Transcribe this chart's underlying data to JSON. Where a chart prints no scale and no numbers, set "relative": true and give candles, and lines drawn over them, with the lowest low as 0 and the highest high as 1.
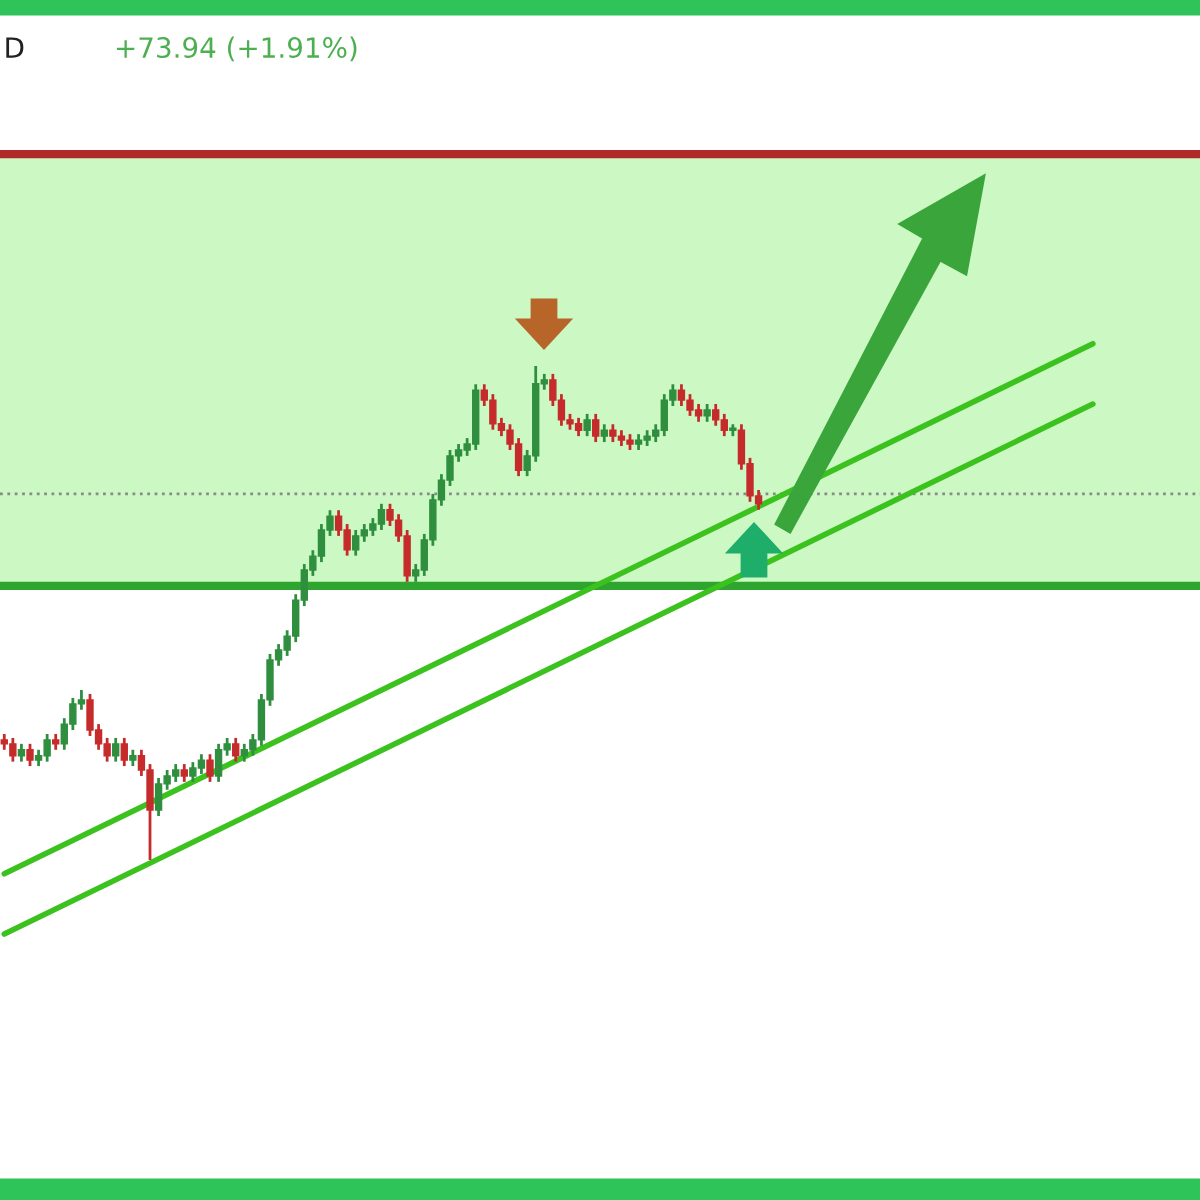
{
  "chart_data": {
    "type": "candlestick",
    "relative": true,
    "annotations": [
      "D",
      "+73.94 (+1.91%)"
    ],
    "categories": [
      null,
      null,
      null,
      null,
      null,
      null,
      null,
      null,
      null,
      null,
      null,
      null,
      null,
      null,
      null,
      null,
      null,
      null,
      null,
      null,
      null,
      null,
      null,
      null,
      null,
      null,
      null,
      null,
      null,
      null,
      null,
      null,
      null,
      null,
      null,
      null,
      null,
      null,
      null,
      null,
      null,
      null,
      null,
      null,
      null,
      null,
      null,
      null,
      null,
      null,
      null,
      null,
      null,
      null,
      null,
      null,
      null,
      null,
      null,
      null,
      null,
      null,
      null,
      null,
      null,
      null,
      null,
      null,
      null,
      null,
      null,
      null,
      null,
      null,
      null,
      null,
      null,
      null,
      null,
      null,
      null,
      null,
      null,
      null,
      null,
      null,
      null,
      null,
      null,
      null,
      null,
      null,
      null,
      null,
      null,
      null,
      null,
      null,
      null,
      null,
      null,
      null,
      null,
      null,
      null,
      null,
      null,
      null,
      null,
      null,
      null,
      null,
      null,
      null,
      null,
      null,
      null,
      null,
      null,
      null,
      null,
      null,
      null,
      null,
      null,
      null,
      null,
      null,
      null,
      null,
      null,
      null,
      null,
      null,
      null,
      null,
      null,
      null,
      null,
      null
    ],
    "ohlc": [
      [
        0.243,
        0.255,
        0.223,
        0.235
      ],
      [
        0.235,
        0.247,
        0.199,
        0.211
      ],
      [
        0.211,
        0.235,
        0.199,
        0.223
      ],
      [
        0.223,
        0.235,
        0.19,
        0.202
      ],
      [
        0.202,
        0.223,
        0.19,
        0.211
      ],
      [
        0.211,
        0.255,
        0.199,
        0.243
      ],
      [
        0.243,
        0.255,
        0.223,
        0.235
      ],
      [
        0.235,
        0.287,
        0.223,
        0.275
      ],
      [
        0.275,
        0.328,
        0.263,
        0.316
      ],
      [
        0.316,
        0.344,
        0.304,
        0.324
      ],
      [
        0.324,
        0.336,
        0.251,
        0.263
      ],
      [
        0.263,
        0.275,
        0.223,
        0.235
      ],
      [
        0.235,
        0.247,
        0.199,
        0.211
      ],
      [
        0.211,
        0.247,
        0.199,
        0.235
      ],
      [
        0.235,
        0.247,
        0.19,
        0.202
      ],
      [
        0.202,
        0.223,
        0.19,
        0.211
      ],
      [
        0.211,
        0.223,
        0.17,
        0.182
      ],
      [
        0.182,
        0.194,
        0,
        0.101
      ],
      [
        0.101,
        0.166,
        0.089,
        0.154
      ],
      [
        0.154,
        0.182,
        0.142,
        0.17
      ],
      [
        0.17,
        0.194,
        0.158,
        0.182
      ],
      [
        0.182,
        0.194,
        0.158,
        0.17
      ],
      [
        0.17,
        0.198,
        0.158,
        0.186
      ],
      [
        0.186,
        0.214,
        0.174,
        0.202
      ],
      [
        0.202,
        0.214,
        0.158,
        0.17
      ],
      [
        0.17,
        0.235,
        0.158,
        0.223
      ],
      [
        0.223,
        0.247,
        0.211,
        0.235
      ],
      [
        0.235,
        0.247,
        0.199,
        0.211
      ],
      [
        0.211,
        0.235,
        0.199,
        0.223
      ],
      [
        0.223,
        0.255,
        0.211,
        0.243
      ],
      [
        0.243,
        0.336,
        0.231,
        0.324
      ],
      [
        0.324,
        0.417,
        0.312,
        0.405
      ],
      [
        0.405,
        0.437,
        0.393,
        0.425
      ],
      [
        0.425,
        0.465,
        0.413,
        0.453
      ],
      [
        0.453,
        0.538,
        0.441,
        0.526
      ],
      [
        0.526,
        0.599,
        0.514,
        0.587
      ],
      [
        0.587,
        0.627,
        0.575,
        0.615
      ],
      [
        0.615,
        0.68,
        0.603,
        0.668
      ],
      [
        0.668,
        0.708,
        0.656,
        0.696
      ],
      [
        0.696,
        0.708,
        0.656,
        0.668
      ],
      [
        0.668,
        0.68,
        0.616,
        0.628
      ],
      [
        0.628,
        0.668,
        0.616,
        0.656
      ],
      [
        0.656,
        0.68,
        0.644,
        0.668
      ],
      [
        0.668,
        0.692,
        0.656,
        0.68
      ],
      [
        0.68,
        0.721,
        0.668,
        0.709
      ],
      [
        0.709,
        0.721,
        0.676,
        0.688
      ],
      [
        0.688,
        0.7,
        0.644,
        0.656
      ],
      [
        0.656,
        0.668,
        0.563,
        0.575
      ],
      [
        0.575,
        0.599,
        0.563,
        0.587
      ],
      [
        0.587,
        0.66,
        0.575,
        0.648
      ],
      [
        0.648,
        0.741,
        0.636,
        0.729
      ],
      [
        0.729,
        0.781,
        0.717,
        0.769
      ],
      [
        0.769,
        0.83,
        0.757,
        0.818
      ],
      [
        0.818,
        0.842,
        0.806,
        0.83
      ],
      [
        0.83,
        0.854,
        0.818,
        0.842
      ],
      [
        0.842,
        0.963,
        0.83,
        0.951
      ],
      [
        0.951,
        0.963,
        0.919,
        0.931
      ],
      [
        0.931,
        0.943,
        0.871,
        0.883
      ],
      [
        0.883,
        0.895,
        0.858,
        0.87
      ],
      [
        0.87,
        0.882,
        0.83,
        0.842
      ],
      [
        0.842,
        0.854,
        0.777,
        0.789
      ],
      [
        0.789,
        0.83,
        0.777,
        0.818
      ],
      [
        0.818,
        1,
        0.806,
        0.964
      ],
      [
        0.964,
        0.984,
        0.952,
        0.972
      ],
      [
        0.972,
        0.984,
        0.919,
        0.931
      ],
      [
        0.931,
        0.943,
        0.879,
        0.891
      ],
      [
        0.891,
        0.903,
        0.871,
        0.883
      ],
      [
        0.883,
        0.895,
        0.858,
        0.87
      ],
      [
        0.87,
        0.903,
        0.858,
        0.891
      ],
      [
        0.891,
        0.903,
        0.846,
        0.858
      ],
      [
        0.858,
        0.882,
        0.846,
        0.87
      ],
      [
        0.87,
        0.882,
        0.846,
        0.858
      ],
      [
        0.858,
        0.87,
        0.838,
        0.85
      ],
      [
        0.85,
        0.862,
        0.83,
        0.842
      ],
      [
        0.842,
        0.862,
        0.83,
        0.85
      ],
      [
        0.85,
        0.87,
        0.838,
        0.858
      ],
      [
        0.858,
        0.882,
        0.846,
        0.87
      ],
      [
        0.87,
        0.943,
        0.858,
        0.931
      ],
      [
        0.931,
        0.963,
        0.919,
        0.951
      ],
      [
        0.951,
        0.963,
        0.919,
        0.931
      ],
      [
        0.931,
        0.943,
        0.899,
        0.911
      ],
      [
        0.911,
        0.923,
        0.887,
        0.899
      ],
      [
        0.899,
        0.923,
        0.887,
        0.911
      ],
      [
        0.911,
        0.923,
        0.879,
        0.891
      ],
      [
        0.891,
        0.903,
        0.858,
        0.87
      ],
      [
        0.87,
        0.882,
        0.858,
        0.87
      ],
      [
        0.87,
        0.882,
        0.79,
        0.802
      ],
      [
        0.802,
        0.814,
        0.725,
        0.737
      ],
      [
        0.737,
        0.749,
        0.709,
        0.721
      ],
      null,
      null,
      null,
      null,
      null,
      null,
      null,
      null,
      null,
      null,
      null,
      null,
      null,
      null,
      null,
      null,
      null,
      null,
      null,
      null,
      null,
      null,
      null,
      null,
      null,
      null,
      null,
      null,
      null,
      null,
      null,
      null,
      null,
      null,
      null,
      null,
      null,
      null,
      null,
      null,
      null,
      null,
      null,
      null,
      null,
      null,
      null,
      null,
      null,
      null,
      null
    ],
    "series": [
      {
        "type": "line",
        "color": "#3cc21e",
        "values": [
          -0.028,
          null,
          null,
          null,
          null,
          null,
          null,
          null,
          null,
          null,
          null,
          null,
          null,
          null,
          null,
          null,
          null,
          null,
          null,
          null,
          null,
          null,
          null,
          null,
          null,
          null,
          null,
          null,
          null,
          null,
          null,
          null,
          null,
          null,
          null,
          null,
          null,
          null,
          null,
          null,
          null,
          null,
          null,
          null,
          null,
          null,
          null,
          null,
          null,
          null,
          null,
          null,
          null,
          null,
          null,
          null,
          null,
          null,
          null,
          null,
          null,
          null,
          null,
          null,
          null,
          null,
          null,
          null,
          null,
          null,
          null,
          null,
          null,
          null,
          null,
          null,
          null,
          null,
          null,
          null,
          null,
          null,
          null,
          null,
          null,
          null,
          null,
          null,
          null,
          null,
          null,
          null,
          null,
          null,
          null,
          null,
          null,
          null,
          null,
          null,
          null,
          null,
          null,
          null,
          null,
          null,
          null,
          null,
          null,
          null,
          null,
          null,
          null,
          null,
          null,
          null,
          null,
          null,
          null,
          null,
          null,
          null,
          null,
          null,
          null,
          null,
          null,
          1.045,
          null,
          null,
          null,
          null,
          null,
          null,
          null,
          null,
          null,
          null,
          null,
          null
        ]
      },
      {
        "type": "line",
        "color": "#3cc21e",
        "values": [
          -0.15,
          null,
          null,
          null,
          null,
          null,
          null,
          null,
          null,
          null,
          null,
          null,
          null,
          null,
          null,
          null,
          null,
          null,
          null,
          null,
          null,
          null,
          null,
          null,
          null,
          null,
          null,
          null,
          null,
          null,
          null,
          null,
          null,
          null,
          null,
          null,
          null,
          null,
          null,
          null,
          null,
          null,
          null,
          null,
          null,
          null,
          null,
          null,
          null,
          null,
          null,
          null,
          null,
          null,
          null,
          null,
          null,
          null,
          null,
          null,
          null,
          null,
          null,
          null,
          null,
          null,
          null,
          null,
          null,
          null,
          null,
          null,
          null,
          null,
          null,
          null,
          null,
          null,
          null,
          null,
          null,
          null,
          null,
          null,
          null,
          null,
          null,
          null,
          null,
          null,
          null,
          null,
          null,
          null,
          null,
          null,
          null,
          null,
          null,
          null,
          null,
          null,
          null,
          null,
          null,
          null,
          null,
          null,
          null,
          null,
          null,
          null,
          null,
          null,
          null,
          null,
          null,
          null,
          null,
          null,
          null,
          null,
          null,
          null,
          null,
          null,
          null,
          0.923,
          null,
          null,
          null,
          null,
          null,
          null,
          null,
          null,
          null,
          null,
          null,
          null
        ]
      }
    ],
    "bands": [
      {
        "axis": "y",
        "from": 0.555,
        "to": 1.429,
        "color": "#ccf8c4"
      }
    ],
    "ref_lines": [
      {
        "axis": "y",
        "value": 1.429,
        "color": "#b02a2a",
        "line_style": "solid"
      },
      {
        "axis": "y",
        "value": 0.555,
        "color": "#2ea52e",
        "line_style": "solid"
      },
      {
        "axis": "y",
        "value": 0.741,
        "color": "#8a8a8a",
        "line_style": "dotted"
      }
    ]
  }
}
